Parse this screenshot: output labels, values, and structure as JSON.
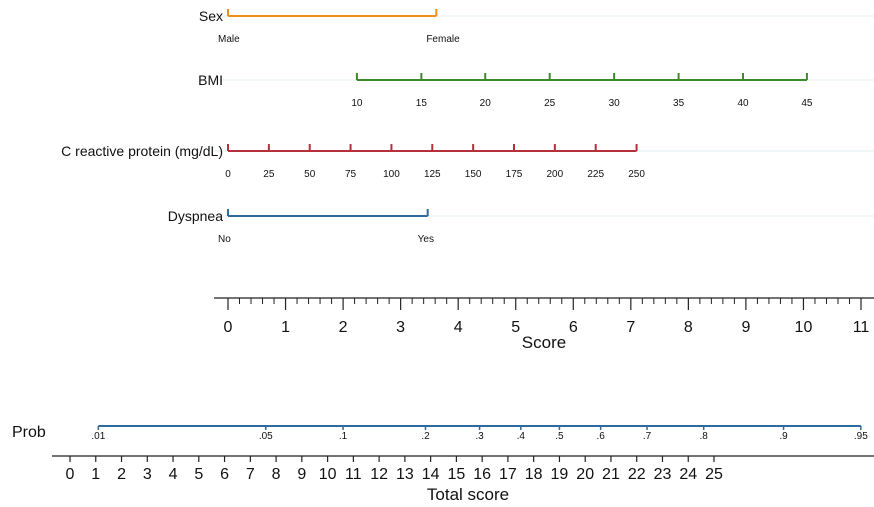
{
  "chart_data": {
    "type": "nomogram",
    "variables": [
      {
        "name": "Sex",
        "color": "#f28e1c",
        "ticks": [
          {
            "label": "Male",
            "score": 0
          },
          {
            "label": "Female",
            "score": 3.62
          }
        ]
      },
      {
        "name": "BMI",
        "color": "#3d8a2b",
        "ticks": [
          {
            "label": "10",
            "score": 2.24
          },
          {
            "label": "15",
            "score": 3.36
          },
          {
            "label": "20",
            "score": 4.47
          },
          {
            "label": "25",
            "score": 5.59
          },
          {
            "label": "30",
            "score": 6.71
          },
          {
            "label": "35",
            "score": 7.83
          },
          {
            "label": "40",
            "score": 8.95
          },
          {
            "label": "45",
            "score": 10.06
          }
        ]
      },
      {
        "name": "C reactive protein (mg/dL)",
        "color": "#b5303a",
        "ticks": [
          {
            "label": "0",
            "score": 0
          },
          {
            "label": "25",
            "score": 0.71
          },
          {
            "label": "50",
            "score": 1.42
          },
          {
            "label": "75",
            "score": 2.13
          },
          {
            "label": "100",
            "score": 2.84
          },
          {
            "label": "125",
            "score": 3.55
          },
          {
            "label": "150",
            "score": 4.26
          },
          {
            "label": "175",
            "score": 4.97
          },
          {
            "label": "200",
            "score": 5.68
          },
          {
            "label": "225",
            "score": 6.39
          },
          {
            "label": "250",
            "score": 7.1
          }
        ]
      },
      {
        "name": "Dyspnea",
        "color": "#2f6a9e",
        "ticks": [
          {
            "label": "No",
            "score": 0
          },
          {
            "label": "Yes",
            "score": 3.47
          }
        ]
      }
    ],
    "score_axis": {
      "title": "Score",
      "range": [
        0,
        11
      ],
      "ticks": [
        "0",
        "1",
        "2",
        "3",
        "4",
        "5",
        "6",
        "7",
        "8",
        "9",
        "10",
        "11"
      ]
    },
    "total_score_axis": {
      "title": "Total score",
      "range": [
        0,
        25
      ],
      "ticks": [
        "0",
        "1",
        "2",
        "3",
        "4",
        "5",
        "6",
        "7",
        "8",
        "9",
        "10",
        "11",
        "12",
        "13",
        "14",
        "15",
        "16",
        "17",
        "18",
        "19",
        "20",
        "21",
        "22",
        "23",
        "24",
        "25"
      ]
    },
    "probability": {
      "label": "Prob",
      "color": "#2f6a9e",
      "ticks": [
        {
          "label": ".01",
          "total_score": 1.1
        },
        {
          "label": ".05",
          "total_score": 7.6
        },
        {
          "label": ".1",
          "total_score": 10.6
        },
        {
          "label": ".2",
          "total_score": 13.8
        },
        {
          "label": ".3",
          "total_score": 15.9
        },
        {
          "label": ".4",
          "total_score": 17.5
        },
        {
          "label": ".5",
          "total_score": 19.0
        },
        {
          "label": ".6",
          "total_score": 20.6
        },
        {
          "label": ".7",
          "total_score": 22.4
        },
        {
          "label": ".8",
          "total_score": 24.6
        },
        {
          "label": ".9",
          "total_score": 27.7
        },
        {
          "label": ".95",
          "total_score": 30.7
        }
      ]
    }
  }
}
